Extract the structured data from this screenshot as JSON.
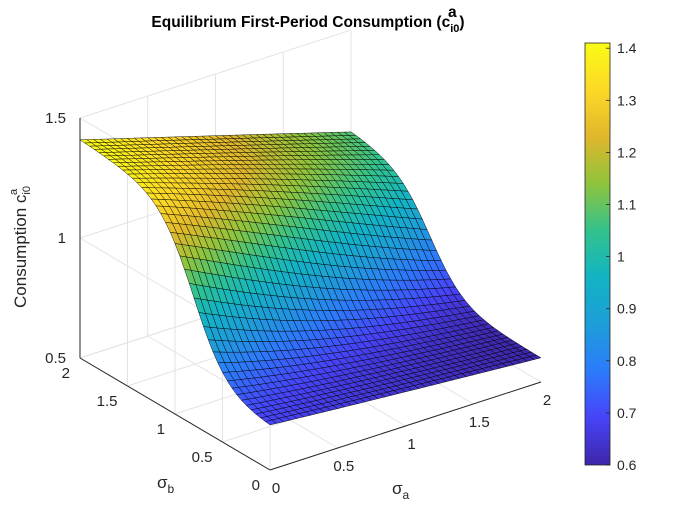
{
  "chart_data": {
    "type": "surface",
    "title": {
      "main": "Equilibrium First-Period Consumption (c",
      "sup": "a",
      "sub": "i0",
      "close": ")"
    },
    "xlabel": {
      "symbol": "σ",
      "sub": "a"
    },
    "ylabel": {
      "symbol": "σ",
      "sub": "b"
    },
    "zlabel": {
      "text": "Consumption c",
      "sup": "a",
      "sub": "i0"
    },
    "xlim": [
      0,
      2
    ],
    "ylim": [
      0,
      2
    ],
    "zlim": [
      0.5,
      1.5
    ],
    "x_ticks": [
      "0",
      "0.5",
      "1",
      "1.5",
      "2"
    ],
    "y_ticks": [
      "0",
      "0.5",
      "1",
      "1.5",
      "2"
    ],
    "z_ticks": [
      "0.5",
      "1",
      "1.5"
    ],
    "grid": true,
    "box": false,
    "edge_color": "#000000",
    "colormap": "parula",
    "surface_samples": {
      "corner_values": [
        {
          "x": 0,
          "y": 2,
          "z": 1.41
        },
        {
          "x": 2,
          "y": 2,
          "z": 1.08
        },
        {
          "x": 0,
          "y": 0,
          "z": 0.68
        },
        {
          "x": 2,
          "y": 0,
          "z": 0.6
        }
      ]
    },
    "colorbar": {
      "location": "right",
      "limits": [
        0.6,
        1.41
      ],
      "ticks": [
        "0.6",
        "0.7",
        "0.8",
        "0.9",
        "1",
        "1.1",
        "1.2",
        "1.3",
        "1.4"
      ],
      "colors": [
        "#3e26a8",
        "#4743f8",
        "#2c7bfb",
        "#1e9dd9",
        "#12b4c4",
        "#33c28c",
        "#8fc43c",
        "#e0b72c",
        "#fdd926",
        "#f9fb15"
      ]
    }
  }
}
